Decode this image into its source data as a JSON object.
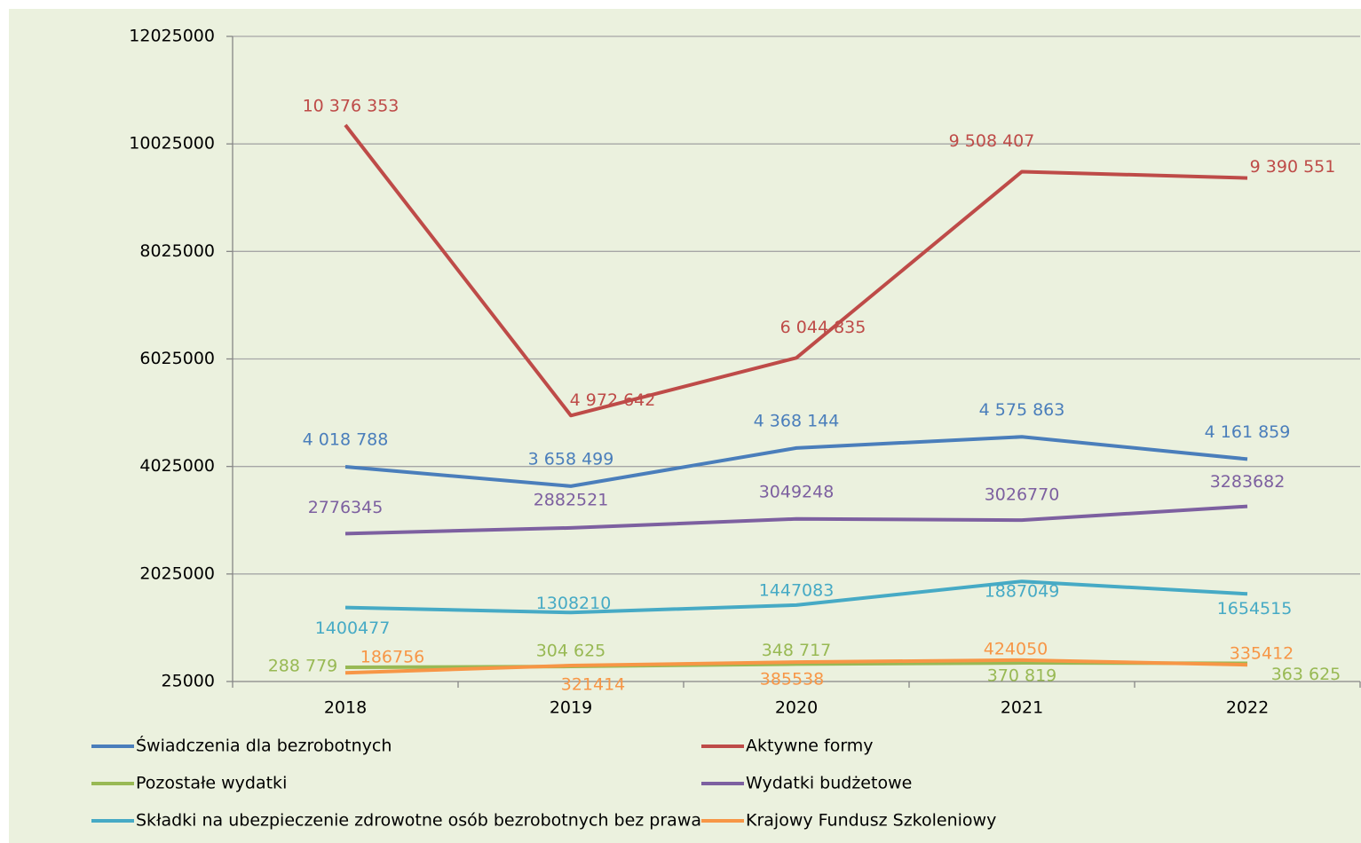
{
  "chart_data": {
    "type": "line",
    "categories": [
      "2018",
      "2019",
      "2020",
      "2021",
      "2022"
    ],
    "ylim": [
      25000,
      12025000
    ],
    "yticks": [
      25000,
      2025000,
      4025000,
      6025000,
      8025000,
      10025000,
      12025000
    ],
    "grid": true,
    "legend": "bottom",
    "series": [
      {
        "name": "Świadczenia dla bezrobotnych",
        "color": "#4a7ebb",
        "values": [
          4018788,
          3658499,
          4368144,
          4575863,
          4161859
        ],
        "value_labels": [
          "4 018 788",
          "3 658 499",
          "4 368 144",
          "4 575 863",
          "4 161 859"
        ]
      },
      {
        "name": "Aktywne formy",
        "color": "#be4b48",
        "values": [
          10376353,
          4972642,
          6044835,
          9508407,
          9390551
        ],
        "value_labels": [
          "10 376 353",
          "4 972 642",
          "6 044 835",
          "9 508 407",
          "9 390 551"
        ]
      },
      {
        "name": "Pozostałe wydatki",
        "color": "#98b954",
        "values": [
          288779,
          304625,
          348717,
          370819,
          363625
        ],
        "value_labels": [
          "288 779",
          "304 625",
          "348 717",
          "370 819",
          "363 625"
        ]
      },
      {
        "name": "Wydatki budżetowe",
        "color": "#7d60a0",
        "values": [
          2776345,
          2882521,
          3049248,
          3026770,
          3283682
        ]
      },
      {
        "name": "Składki na ubezpieczenie zdrowotne osób bezrobotnych bez prawa",
        "color": "#46aac5",
        "values": [
          1400477,
          1308210,
          1447083,
          1887049,
          1654515
        ]
      },
      {
        "name": "Krajowy Fundusz Szkoleniowy",
        "color": "#f79646",
        "values": [
          186756,
          321414,
          385538,
          424050,
          335412
        ]
      }
    ]
  }
}
